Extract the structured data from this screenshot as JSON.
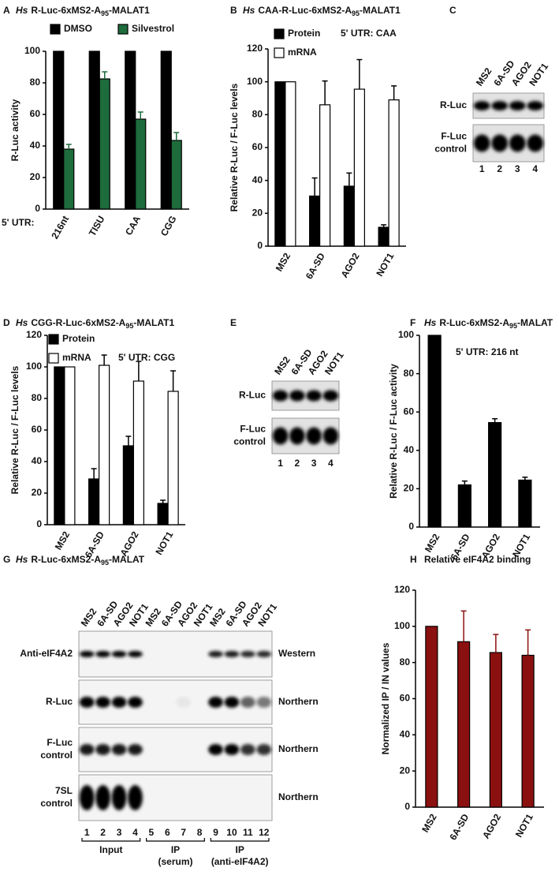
{
  "chart_data": [
    {
      "type": "bar",
      "panel": "A",
      "title": [
        "Hs",
        "R-Luc-6xMS2-A",
        "95",
        "-MALAT1"
      ],
      "ylabel": "R-Luc activity",
      "xlabel": "5' UTR:",
      "categories": [
        "216nt",
        "TISU",
        "CAA",
        "CGG"
      ],
      "series": [
        {
          "name": "DMSO",
          "color": "#000000",
          "values": [
            100,
            100,
            100,
            100
          ]
        },
        {
          "name": "Silvestrol",
          "color": "#1e6b3c",
          "values": [
            38,
            82.5,
            57,
            43.5
          ],
          "errors": [
            3,
            4.5,
            4.5,
            5
          ]
        }
      ],
      "ylim": [
        0,
        100
      ],
      "yticks": [
        0,
        20,
        40,
        60,
        80,
        100
      ]
    },
    {
      "type": "bar",
      "panel": "B",
      "title": [
        "Hs",
        "CAA-R-Luc-6xMS2-A",
        "95",
        "-MALAT1"
      ],
      "ylabel": "Relative R-Luc / F-Luc levels",
      "annotation": "5' UTR: CAA",
      "categories": [
        "MS2",
        "6A-SD",
        "AGO2",
        "NOT1"
      ],
      "series": [
        {
          "name": "Protein",
          "color": "#000000",
          "values": [
            100,
            30.5,
            36.5,
            11.5
          ],
          "errors": [
            null,
            11,
            8,
            1.5
          ]
        },
        {
          "name": "mRNA",
          "color": "#ffffff",
          "values": [
            100,
            86,
            95.5,
            89
          ],
          "errors": [
            null,
            14.5,
            18,
            8.5
          ]
        }
      ],
      "ylim": [
        0,
        120
      ],
      "yticks": [
        0,
        20,
        40,
        60,
        80,
        100,
        120
      ]
    },
    {
      "type": "bar",
      "panel": "D",
      "title": [
        "Hs",
        "CGG-R-Luc-6xMS2-A",
        "95",
        "-MALAT1"
      ],
      "ylabel": "Relative R-Luc / F-Luc levels",
      "annotation": "5' UTR: CGG",
      "categories": [
        "MS2",
        "6A-SD",
        "AGO2",
        "NOT1"
      ],
      "series": [
        {
          "name": "Protein",
          "color": "#000000",
          "values": [
            100,
            29,
            50,
            13.5
          ],
          "errors": [
            null,
            6.5,
            6,
            2
          ]
        },
        {
          "name": "mRNA",
          "color": "#ffffff",
          "values": [
            100,
            101,
            91,
            84.5
          ],
          "errors": [
            null,
            6.5,
            12.5,
            13
          ]
        }
      ],
      "ylim": [
        0,
        120
      ],
      "yticks": [
        0,
        20,
        40,
        60,
        80,
        100,
        120
      ]
    },
    {
      "type": "bar",
      "panel": "F",
      "title": [
        "Hs",
        "R-Luc-6xMS2-A",
        "95",
        "-MALAT"
      ],
      "ylabel": "Relative R-Luc / F-Luc activity",
      "annotation": "5' UTR: 216 nt",
      "categories": [
        "MS2",
        "6A-SD",
        "AGO2",
        "NOT1"
      ],
      "values": [
        100,
        22,
        54.5,
        24.5
      ],
      "errors": [
        null,
        2,
        2,
        1.5
      ],
      "color": "#000000",
      "ylim": [
        0,
        100
      ],
      "yticks": [
        0,
        20,
        40,
        60,
        80,
        100
      ]
    },
    {
      "type": "bar",
      "panel": "H",
      "title": "Relative eIF4A2 binding",
      "ylabel": "Normalized IP / IN values",
      "categories": [
        "MS2",
        "6A-SD",
        "AGO2",
        "NOT1"
      ],
      "values": [
        100,
        91.5,
        85.5,
        84
      ],
      "errors": [
        null,
        17,
        10,
        14
      ],
      "color": "#8b1010",
      "ylim": [
        0,
        120
      ],
      "yticks": [
        0,
        20,
        40,
        60,
        80,
        100,
        120
      ]
    }
  ],
  "blots": [
    {
      "panel": "C",
      "lanes": [
        "MS2",
        "6A-SD",
        "AGO2",
        "NOT1"
      ],
      "rows": [
        {
          "label": [
            "R-Luc"
          ]
        },
        {
          "label": [
            "F-Luc",
            "control"
          ]
        }
      ],
      "lane_numbers": [
        "1",
        "2",
        "3",
        "4"
      ]
    },
    {
      "panel": "E",
      "lanes": [
        "MS2",
        "6A-SD",
        "AGO2",
        "NOT1"
      ],
      "rows": [
        {
          "label": [
            "R-Luc"
          ]
        },
        {
          "label": [
            "F-Luc",
            "control"
          ]
        }
      ],
      "lane_numbers": [
        "1",
        "2",
        "3",
        "4"
      ]
    },
    {
      "panel": "G",
      "title": [
        "Hs",
        "R-Luc-6xMS2-A",
        "95",
        "-MALAT"
      ],
      "lanes": [
        "MS2",
        "6A-SD",
        "AGO2",
        "NOT1",
        "MS2",
        "6A-SD",
        "AGO2",
        "NOT1",
        "MS2",
        "6A-SD",
        "AGO2",
        "NOT1"
      ],
      "rows": [
        {
          "label": [
            "Anti-eIF4A2"
          ],
          "method": "Western"
        },
        {
          "label": [
            "R-Luc"
          ],
          "method": "Northern"
        },
        {
          "label": [
            "F-Luc",
            "control"
          ],
          "method": "Northern"
        },
        {
          "label": [
            "7SL",
            "control"
          ],
          "method": "Northern"
        }
      ],
      "lane_numbers": [
        "1",
        "2",
        "3",
        "4",
        "5",
        "6",
        "7",
        "8",
        "9",
        "10",
        "11",
        "12"
      ],
      "groups": [
        {
          "label": [
            "Input"
          ]
        },
        {
          "label": [
            "IP",
            "(serum)"
          ]
        },
        {
          "label": [
            "IP",
            "(anti-eIF4A2)"
          ]
        }
      ]
    }
  ]
}
